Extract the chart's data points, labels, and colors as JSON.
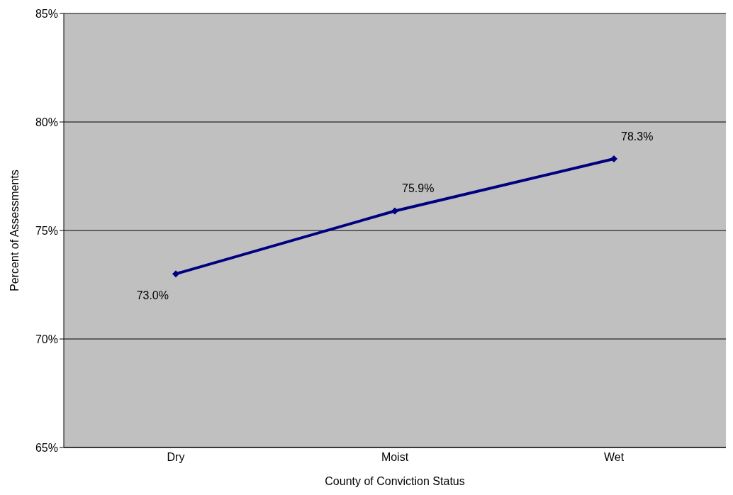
{
  "chart_data": {
    "type": "line",
    "xlabel": "County of Conviction Status",
    "ylabel": "Percent of Assessments",
    "categories": [
      "Dry",
      "Moist",
      "Wet"
    ],
    "series": [
      {
        "color": "#000080",
        "values": [
          73.0,
          75.9,
          78.3
        ],
        "value_labels": [
          "73.0%",
          "75.9%",
          "78.3%"
        ]
      }
    ],
    "ylim": [
      65,
      85
    ],
    "yticks": [
      {
        "value": 65,
        "label": "65%"
      },
      {
        "value": 70,
        "label": "70%"
      },
      {
        "value": 75,
        "label": "75%"
      },
      {
        "value": 80,
        "label": "80%"
      },
      {
        "value": 85,
        "label": "85%"
      }
    ],
    "grid": "y",
    "marker": "diamond",
    "line_style": "solid",
    "legend": false
  }
}
